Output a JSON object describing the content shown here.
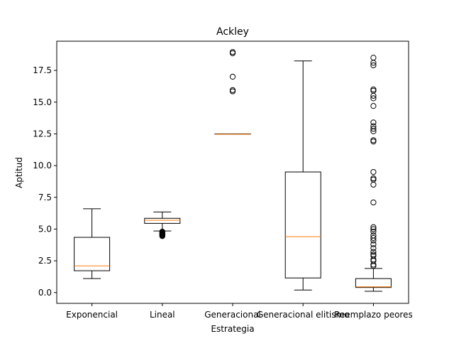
{
  "chart_data": {
    "type": "boxplot",
    "title": "Ackley",
    "xlabel": "Estrategia",
    "ylabel": "Aptitud",
    "ylim": [
      -0.85,
      19.8
    ],
    "yticks": [
      0.0,
      2.5,
      5.0,
      7.5,
      10.0,
      12.5,
      15.0,
      17.5
    ],
    "ytick_labels": [
      "0.0",
      "2.5",
      "5.0",
      "7.5",
      "10.0",
      "12.5",
      "15.0",
      "17.5"
    ],
    "grid": false,
    "legend": "none",
    "categories": [
      "Exponencial",
      "Lineal",
      "Generacional",
      "Generacional elitismo",
      "Reemplazo peores"
    ],
    "boxes": [
      {
        "whisker_low": 1.1,
        "q1": 1.72,
        "median": 2.1,
        "q3": 4.35,
        "whisker_high": 6.6,
        "outliers": []
      },
      {
        "whisker_low": 4.85,
        "q1": 5.45,
        "median": 5.7,
        "q3": 5.85,
        "whisker_high": 6.35,
        "outliers": [
          4.45,
          4.5,
          4.55,
          4.6,
          4.65,
          4.7,
          4.75,
          4.8
        ]
      },
      {
        "whisker_low": 12.47,
        "q1": 12.47,
        "median": 12.47,
        "q3": 12.5,
        "whisker_high": 12.5,
        "outliers": [
          15.85,
          15.95,
          17.0,
          18.85,
          18.95
        ]
      },
      {
        "whisker_low": 0.2,
        "q1": 1.15,
        "median": 4.4,
        "q3": 9.5,
        "whisker_high": 18.25,
        "outliers": []
      },
      {
        "whisker_low": 0.1,
        "q1": 0.4,
        "median": 0.45,
        "q3": 1.1,
        "whisker_high": 1.9,
        "outliers": [
          2.1,
          2.2,
          2.5,
          2.6,
          2.9,
          3.0,
          3.2,
          3.5,
          3.8,
          4.1,
          4.3,
          4.5,
          4.8,
          5.0,
          5.15,
          7.1,
          8.5,
          8.9,
          9.0,
          9.5,
          11.9,
          12.0,
          12.7,
          12.9,
          13.1,
          13.4,
          14.7,
          15.3,
          15.5,
          15.9,
          16.0,
          17.9,
          18.1,
          18.5
        ]
      }
    ],
    "colors": {
      "box": "#000000",
      "median": "#ff7f0e",
      "outlier": "#000000"
    }
  }
}
